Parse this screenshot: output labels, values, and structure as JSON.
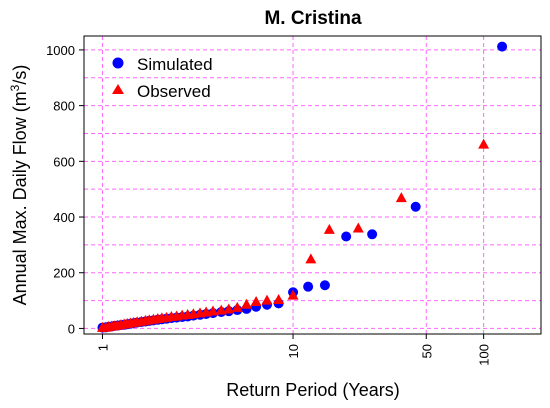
{
  "chart_data": {
    "type": "scatter",
    "title": "M. Cristina",
    "xlabel": "Return Period (Years)",
    "ylabel_main": "Annual Max. Daily Flow (m",
    "ylabel_sup": "3",
    "ylabel_end": "/s)",
    "x_scale": "log",
    "xlim": [
      0.8,
      200
    ],
    "ylim": [
      -20,
      1050
    ],
    "x_ticks": [
      1,
      10,
      50,
      100
    ],
    "x_tick_labels": [
      "1",
      "10",
      "50",
      "100"
    ],
    "y_ticks": [
      0,
      200,
      400,
      600,
      800,
      1000
    ],
    "y_tick_labels": [
      "0",
      "200",
      "400",
      "600",
      "800",
      "1000"
    ],
    "grid": true,
    "grid_color": "#ff66ff",
    "legend_position": "top-left",
    "series": [
      {
        "name": "Simulated",
        "marker": "circle",
        "color": "#0000ff",
        "points": [
          [
            1.0,
            3
          ],
          [
            1.04,
            4
          ],
          [
            1.08,
            6
          ],
          [
            1.12,
            7
          ],
          [
            1.16,
            9
          ],
          [
            1.2,
            10
          ],
          [
            1.25,
            12
          ],
          [
            1.3,
            13
          ],
          [
            1.35,
            15
          ],
          [
            1.4,
            17
          ],
          [
            1.46,
            19
          ],
          [
            1.52,
            21
          ],
          [
            1.6,
            23
          ],
          [
            1.68,
            25
          ],
          [
            1.76,
            27
          ],
          [
            1.85,
            29
          ],
          [
            1.95,
            31
          ],
          [
            2.05,
            33
          ],
          [
            2.17,
            35
          ],
          [
            2.3,
            37
          ],
          [
            2.45,
            39
          ],
          [
            2.62,
            41
          ],
          [
            2.8,
            43
          ],
          [
            3.0,
            46
          ],
          [
            3.25,
            49
          ],
          [
            3.5,
            52
          ],
          [
            3.8,
            55
          ],
          [
            4.2,
            59
          ],
          [
            4.6,
            62
          ],
          [
            5.1,
            66
          ],
          [
            5.7,
            70
          ],
          [
            6.4,
            78
          ],
          [
            7.3,
            85
          ],
          [
            8.4,
            90
          ],
          [
            10.0,
            130
          ],
          [
            12.0,
            150
          ],
          [
            14.7,
            155
          ],
          [
            19.0,
            330
          ],
          [
            26.0,
            338
          ],
          [
            44.0,
            437
          ],
          [
            125.0,
            1012
          ]
        ]
      },
      {
        "name": "Observed",
        "marker": "triangle",
        "color": "#ff0000",
        "points": [
          [
            1.0,
            2
          ],
          [
            1.04,
            3
          ],
          [
            1.08,
            5
          ],
          [
            1.12,
            7
          ],
          [
            1.16,
            8
          ],
          [
            1.2,
            10
          ],
          [
            1.25,
            12
          ],
          [
            1.3,
            14
          ],
          [
            1.35,
            16
          ],
          [
            1.4,
            18
          ],
          [
            1.46,
            20
          ],
          [
            1.52,
            22
          ],
          [
            1.6,
            24
          ],
          [
            1.68,
            27
          ],
          [
            1.76,
            29
          ],
          [
            1.85,
            31
          ],
          [
            1.95,
            34
          ],
          [
            2.05,
            36
          ],
          [
            2.17,
            38
          ],
          [
            2.3,
            41
          ],
          [
            2.45,
            43
          ],
          [
            2.62,
            46
          ],
          [
            2.8,
            48
          ],
          [
            3.0,
            51
          ],
          [
            3.25,
            54
          ],
          [
            3.5,
            57
          ],
          [
            3.8,
            61
          ],
          [
            4.2,
            64
          ],
          [
            4.6,
            68
          ],
          [
            5.1,
            74
          ],
          [
            5.7,
            85
          ],
          [
            6.4,
            95
          ],
          [
            7.3,
            100
          ],
          [
            8.4,
            102
          ],
          [
            10.0,
            118
          ],
          [
            12.4,
            248
          ],
          [
            15.5,
            354
          ],
          [
            22.0,
            359
          ],
          [
            37.0,
            468
          ],
          [
            100.0,
            660
          ]
        ]
      }
    ]
  }
}
